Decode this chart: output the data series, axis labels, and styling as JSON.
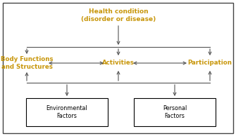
{
  "title": "Health condition\n(disorder or disease)",
  "node_body": "Body Functions\nand Structures",
  "node_activities": "Activities",
  "node_participation": "Participation",
  "box_env": "Environmental\nFactors",
  "box_personal": "Personal\nFactors",
  "node_color": "#c8960a",
  "box_color": "#000000",
  "arrow_color": "#555555",
  "bg_color": "#ffffff",
  "border_color": "#444444",
  "fig_width": 3.35,
  "fig_height": 1.94,
  "dpi": 100
}
